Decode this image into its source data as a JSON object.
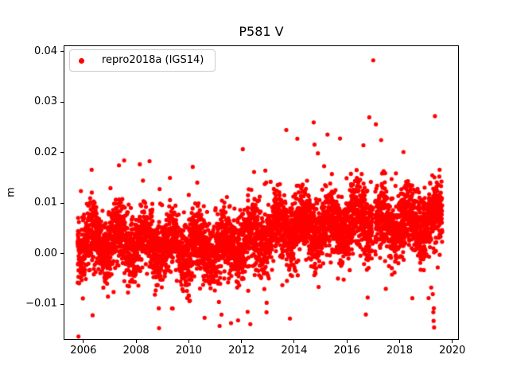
{
  "chart_data": {
    "type": "scatter",
    "title": "P581 V",
    "xlabel": "",
    "ylabel": "m",
    "grid": false,
    "background_color": "#ffffff",
    "spine_color": "#000000",
    "xlim": [
      2005.28,
      2020.22
    ],
    "ylim": [
      -0.0169,
      0.0411
    ],
    "x_ticks": {
      "values": [
        2006,
        2008,
        2010,
        2012,
        2014,
        2016,
        2018,
        2020
      ],
      "labels": [
        "2006",
        "2008",
        "2010",
        "2012",
        "2014",
        "2016",
        "2018",
        "2020"
      ]
    },
    "y_ticks": {
      "values": [
        -0.01,
        0.0,
        0.01,
        0.02,
        0.03,
        0.04
      ],
      "labels": [
        "−0.01",
        "0.00",
        "0.01",
        "0.02",
        "0.03",
        "0.04"
      ]
    },
    "legend": {
      "position": "upper left",
      "entries": [
        {
          "label": "repro2018a (IGS14)",
          "color": "#ff0000",
          "marker": "point"
        }
      ]
    },
    "series": [
      {
        "name": "repro2018a (IGS14)",
        "color": "#ff0000",
        "marker": "circle",
        "marker_radius_px": 2.6,
        "synthesis": {
          "seed": 42,
          "x_range_years": [
            2005.78,
            2019.62
          ],
          "points_per_year": 360,
          "trend_knots": [
            [
              2005.78,
              0.002
            ],
            [
              2006.5,
              0.0025
            ],
            [
              2007.5,
              0.0024
            ],
            [
              2008.5,
              0.002
            ],
            [
              2009.5,
              0.0013
            ],
            [
              2010.5,
              0.001
            ],
            [
              2011.5,
              0.0015
            ],
            [
              2012.5,
              0.0035
            ],
            [
              2013.5,
              0.0045
            ],
            [
              2014.5,
              0.0055
            ],
            [
              2015.5,
              0.0058
            ],
            [
              2016.5,
              0.0062
            ],
            [
              2017.0,
              0.0068
            ],
            [
              2017.5,
              0.006
            ],
            [
              2018.5,
              0.0062
            ],
            [
              2019.62,
              0.0068
            ]
          ],
          "seasonal_amplitude": 0.0022,
          "seasonal_phase": 0.1,
          "noise_sigma": 0.0031,
          "outlier_fraction": 0.06,
          "outlier_scale": 2.3,
          "gaps": [
            [
              2016.98,
              2017.07
            ]
          ],
          "explicit_points": [
            [
              2017.0,
              0.0383
            ],
            [
              2016.85,
              0.027
            ],
            [
              2014.74,
              0.026
            ],
            [
              2013.7,
              0.0245
            ],
            [
              2015.74,
              0.0228
            ],
            [
              2014.77,
              0.0216
            ],
            [
              2012.05,
              0.0207
            ],
            [
              2017.3,
              0.0225
            ],
            [
              2007.35,
              0.0175
            ],
            [
              2010.15,
              0.0172
            ],
            [
              2006.35,
              -0.0122
            ],
            [
              2010.6,
              -0.0127
            ],
            [
              2011.17,
              -0.0143
            ],
            [
              2011.87,
              -0.0132
            ],
            [
              2012.95,
              -0.0116
            ],
            [
              2019.1,
              -0.0088
            ],
            [
              2019.2,
              -0.0067
            ],
            [
              2019.26,
              -0.008
            ],
            [
              2019.3,
              -0.0108
            ],
            [
              2019.28,
              -0.0116
            ],
            [
              2019.29,
              -0.0133
            ],
            [
              2019.31,
              -0.0146
            ]
          ]
        }
      }
    ]
  }
}
